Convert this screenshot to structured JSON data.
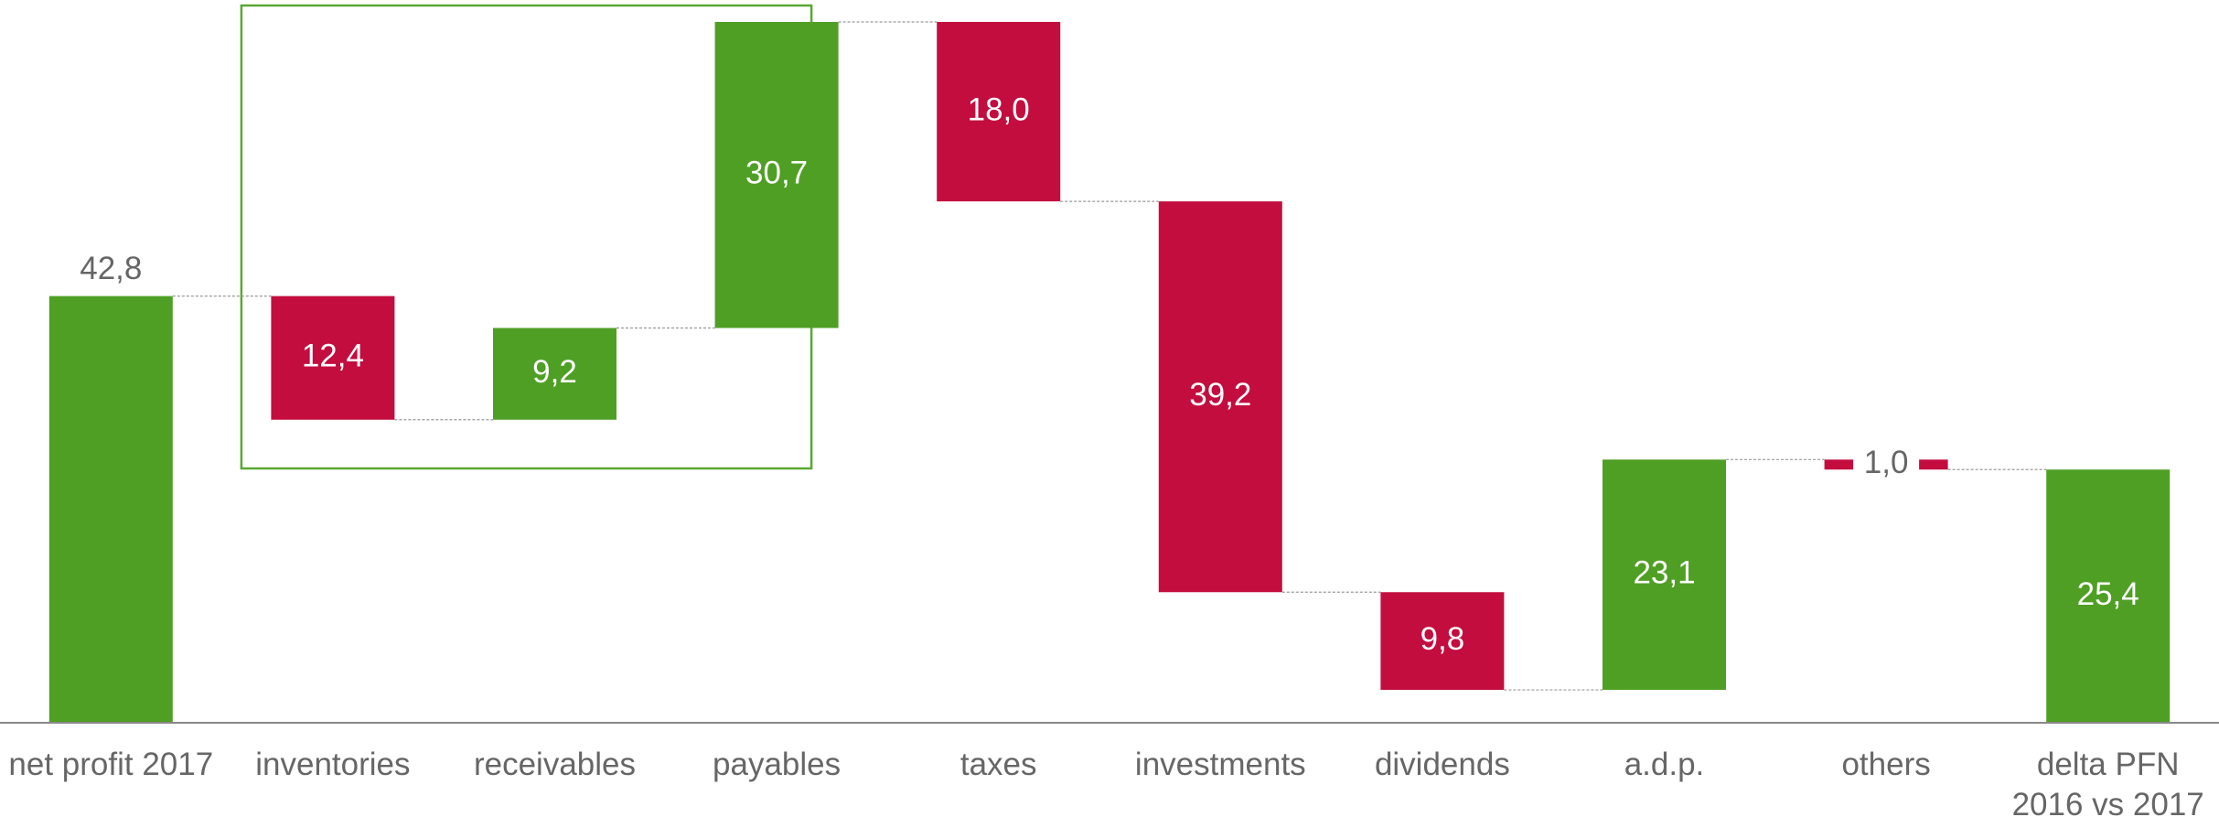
{
  "chart_data": {
    "type": "waterfall",
    "categories": [
      "net profit 2017",
      "inventories",
      "receivables",
      "payables",
      "taxes",
      "investments",
      "dividends",
      "a.d.p.",
      "others",
      "delta PFN 2016 vs 2017"
    ],
    "measures": [
      "total",
      "relative",
      "relative",
      "relative",
      "relative",
      "relative",
      "relative",
      "relative",
      "relative",
      "total"
    ],
    "values": [
      42.8,
      -12.4,
      9.2,
      30.7,
      -18.0,
      -39.2,
      -9.8,
      23.1,
      -1.0,
      25.4
    ],
    "value_labels": [
      "42,8",
      "12,4",
      "9,2",
      "30,7",
      "18,0",
      "39,2",
      "9,8",
      "23,1",
      "1,0",
      "25,4"
    ],
    "increase_color": "#4f9f25",
    "decrease_color": "#c30d3f",
    "ylim": [
      0,
      72.5
    ]
  }
}
